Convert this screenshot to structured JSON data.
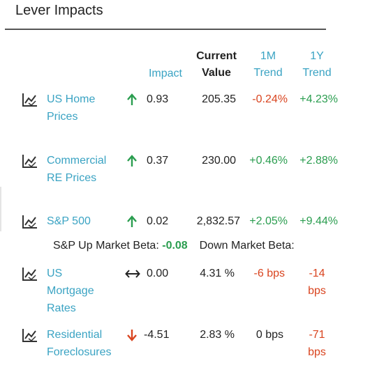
{
  "panel": {
    "title": "Lever Impacts"
  },
  "headers": {
    "impact": "Impact",
    "current_line1": "Current",
    "current_line2": "Value",
    "m1_line1": "1M",
    "m1_line2": "Trend",
    "y1_line1": "1Y",
    "y1_line2": "Trend"
  },
  "rows": [
    {
      "name_line1": "US Home",
      "name_line2": "Prices",
      "name_line3": "",
      "direction": "up",
      "impact": "0.93",
      "current": "205.35",
      "m1": "-0.24%",
      "y1": "+4.23%",
      "y1_line2": ""
    },
    {
      "name_line1": "Commercial",
      "name_line2": "RE Prices",
      "name_line3": "",
      "direction": "up",
      "impact": "0.37",
      "current": "230.00",
      "m1": "+0.46%",
      "y1": "+2.88%",
      "y1_line2": ""
    },
    {
      "name_line1": "S&P 500",
      "name_line2": "",
      "name_line3": "",
      "direction": "up",
      "impact": "0.02",
      "current": "2,832.57",
      "m1": "+2.05%",
      "y1": "+9.44%",
      "y1_line2": ""
    },
    {
      "name_line1": "US",
      "name_line2": "Mortgage",
      "name_line3": "Rates",
      "direction": "flat",
      "impact": "0.00",
      "current": "4.31 %",
      "m1": "-6 bps",
      "y1": "-14",
      "y1_line2": "bps"
    },
    {
      "name_line1": "Residential",
      "name_line2": "Foreclosures",
      "name_line3": "",
      "direction": "down",
      "impact": "-4.51",
      "current": "2.83 %",
      "m1": "0 bps",
      "y1": "-71",
      "y1_line2": "bps"
    }
  ],
  "beta": {
    "up_label": "S&P Up Market Beta:",
    "up_value": "-0.08",
    "down_label": "Down Market Beta:"
  },
  "colors": {
    "link": "#3aa3c3",
    "positive": "#2a9d4f",
    "negative": "#d9441f"
  },
  "icons": {
    "row_chart": "line-chart-icon",
    "up": "arrow-up-icon",
    "down": "arrow-down-icon",
    "flat": "arrow-left-right-icon"
  }
}
